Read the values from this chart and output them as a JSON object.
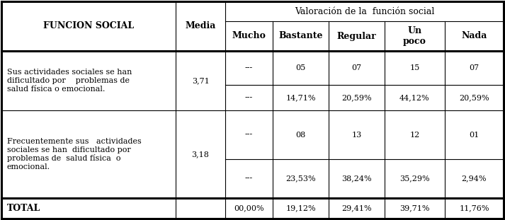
{
  "title_row": "Valoración de la  función social",
  "col0_header": "FUNCION SOCIAL",
  "col1_header": "Media",
  "col_headers": [
    "Mucho",
    "Bastante",
    "Regular",
    "Un\npoco",
    "Nada"
  ],
  "row1_label": "Sus actividades sociales se han\ndificultado por    problemas de\nsalud física o emocional.",
  "row1_media": "3,71",
  "row1_counts": [
    "---",
    "05",
    "07",
    "15",
    "07"
  ],
  "row1_pcts": [
    "---",
    "14,71%",
    "20,59%",
    "44,12%",
    "20,59%"
  ],
  "row2_label": "Frecuentemente sus   actividades\nsociales se han  dificultado por\nproblemas de  salud física  o\nemocional.",
  "row2_media": "3,18",
  "row2_counts": [
    "---",
    "08",
    "13",
    "12",
    "01"
  ],
  "row2_pcts": [
    "---",
    "23,53%",
    "38,24%",
    "35,29%",
    "2,94%"
  ],
  "total_label": "TOTAL",
  "total_row": [
    "00,00%",
    "19,12%",
    "29,41%",
    "39,71%",
    "11,76%"
  ],
  "bg_color": "#ffffff",
  "text_color": "#000000",
  "font_size": 8.0,
  "bold_font_size": 9.0
}
